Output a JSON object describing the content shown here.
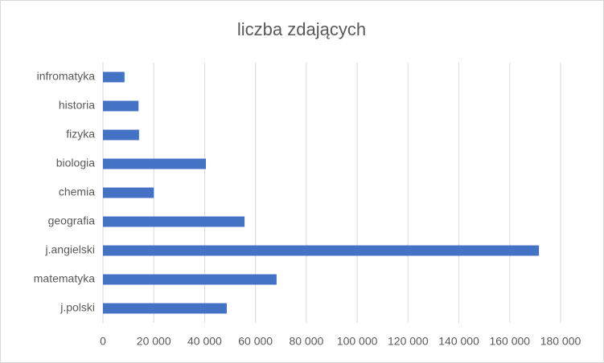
{
  "chart_data": {
    "type": "hbar",
    "title": "liczba zdających",
    "categories": [
      "j.polski",
      "matematyka",
      "j.angielski",
      "geografia",
      "chemia",
      "biologia",
      "fizyka",
      "historia",
      "infromatyka"
    ],
    "values": [
      48700,
      68300,
      171500,
      55700,
      20000,
      40500,
      14200,
      14000,
      8500
    ],
    "color": "#4472c4",
    "xlim": [
      0,
      180000
    ],
    "xticks": [
      0,
      {
        "value": 20000,
        "label": "20 000"
      },
      {
        "value": 40000,
        "label": "40 000"
      },
      {
        "value": 60000,
        "label": "60 000"
      },
      {
        "value": 80000,
        "label": "80 000"
      },
      {
        "value": 100000,
        "label": "100 000"
      },
      {
        "value": 120000,
        "label": "120 000"
      },
      {
        "value": 140000,
        "label": "140 000"
      },
      {
        "value": 160000,
        "label": "160 000"
      },
      {
        "value": 180000,
        "label": "180 000"
      }
    ],
    "grid": true
  }
}
